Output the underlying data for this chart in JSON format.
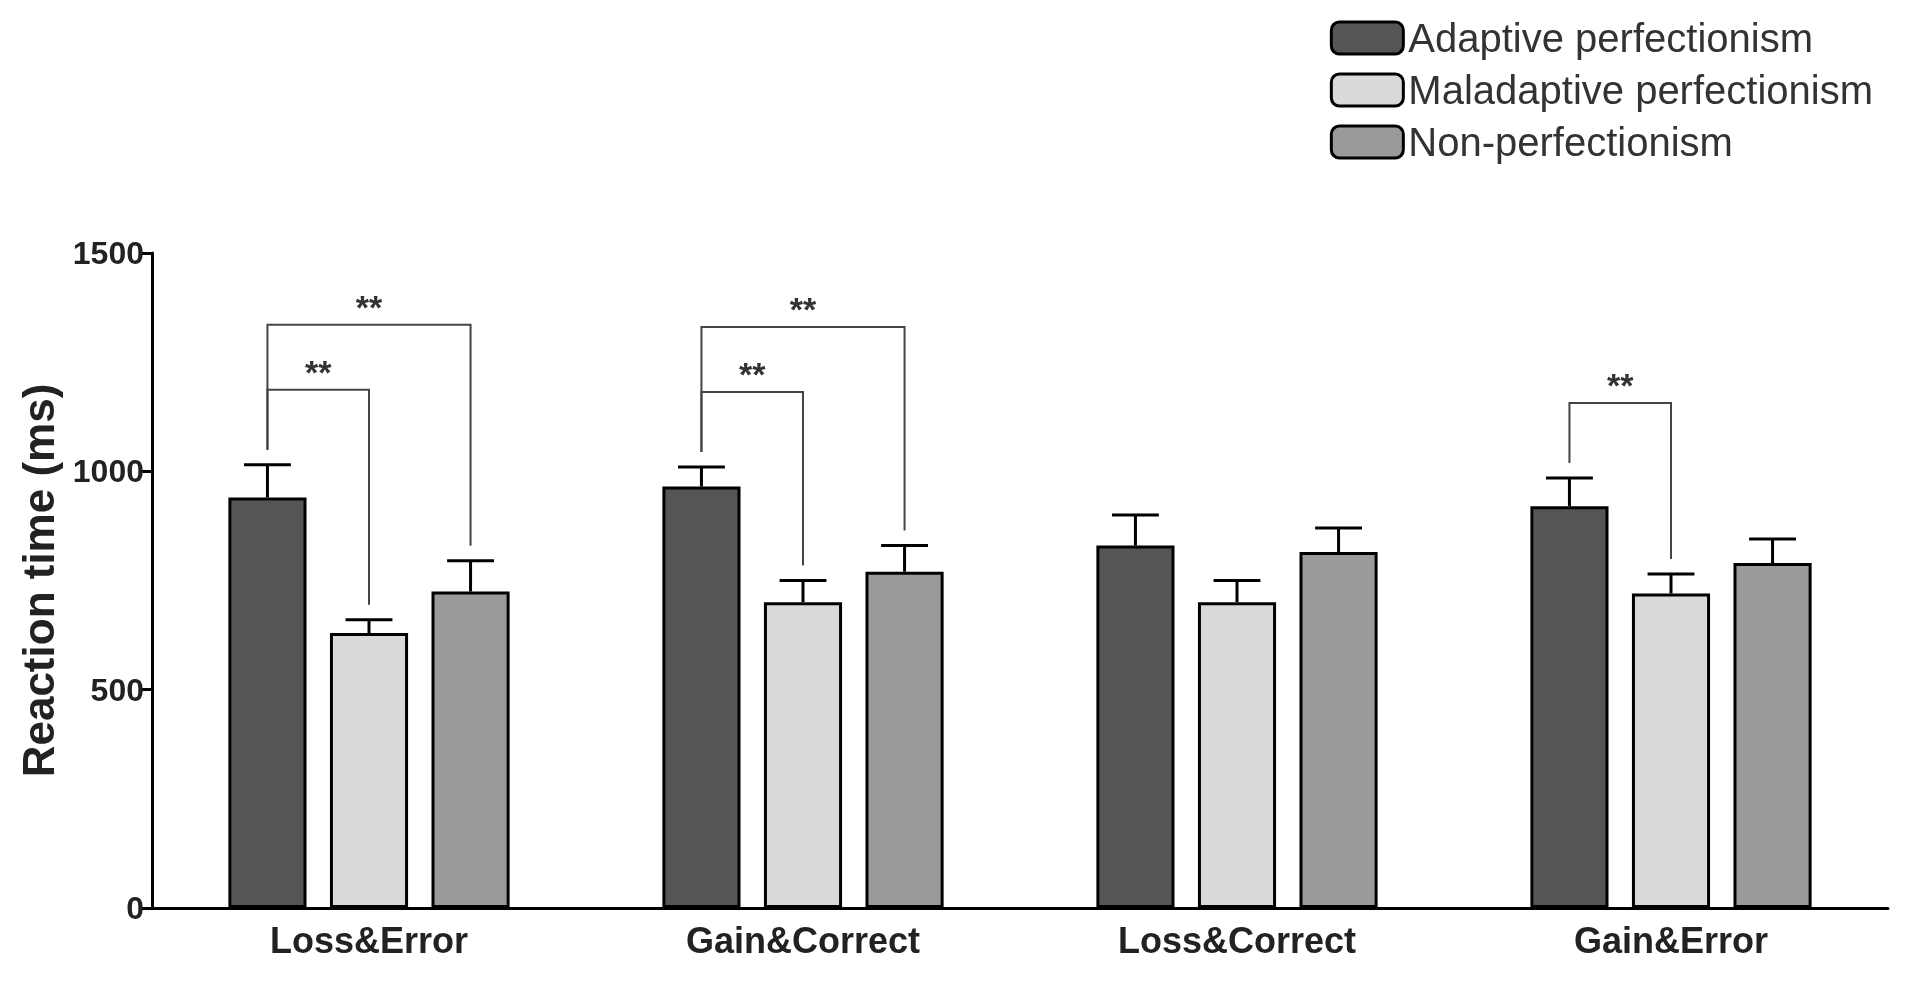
{
  "chart_data": {
    "type": "bar",
    "ylabel": "Reaction time (ms)",
    "categories": [
      "Loss&Error",
      "Gain&Correct",
      "Loss&Correct",
      "Gain&Error"
    ],
    "series": [
      {
        "name": "Adaptive perfectionism",
        "color": "#555555",
        "values": [
          940,
          965,
          830,
          920
        ],
        "errors": [
          [
            940,
            1015
          ],
          [
            965,
            1010
          ],
          [
            830,
            900
          ],
          [
            920,
            985
          ]
        ]
      },
      {
        "name": "Maladaptive perfectionism",
        "color": "#d9d9d9",
        "values": [
          630,
          700,
          700,
          720
        ],
        "errors": [
          [
            630,
            660
          ],
          [
            700,
            750
          ],
          [
            700,
            750
          ],
          [
            720,
            765
          ]
        ]
      },
      {
        "name": "Non-perfectionism",
        "color": "#9a9a9a",
        "values": [
          725,
          770,
          815,
          790
        ],
        "errors": [
          [
            725,
            795
          ],
          [
            770,
            830
          ],
          [
            815,
            870
          ],
          [
            790,
            845
          ]
        ]
      }
    ],
    "ylim": [
      0,
      1500
    ],
    "yticks": [
      0,
      500,
      1000,
      1500
    ],
    "grid": false,
    "legend": "top right",
    "annotations": [
      "**",
      "**",
      "**",
      "**",
      "**"
    ]
  }
}
